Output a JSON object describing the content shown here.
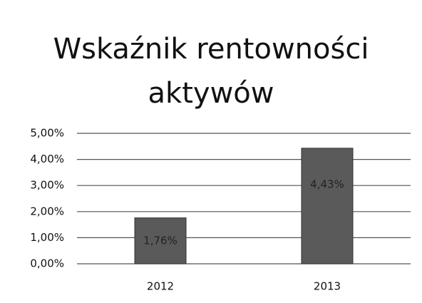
{
  "chart_data": {
    "type": "bar",
    "title": "Wskaźnik rentowności aktywów",
    "categories": [
      "2012",
      "2013"
    ],
    "values": [
      1.76,
      4.43
    ],
    "value_labels": [
      "1,76%",
      "4,43%"
    ],
    "color": "#5a5a5a",
    "ylim": [
      0,
      5
    ],
    "yticks": [
      {
        "value": 0,
        "label": "0,00%"
      },
      {
        "value": 1,
        "label": "1,00%"
      },
      {
        "value": 2,
        "label": "2,00%"
      },
      {
        "value": 3,
        "label": "3,00%"
      },
      {
        "value": 4,
        "label": "4,00%"
      },
      {
        "value": 5,
        "label": "5,00%"
      }
    ],
    "grid": true
  }
}
